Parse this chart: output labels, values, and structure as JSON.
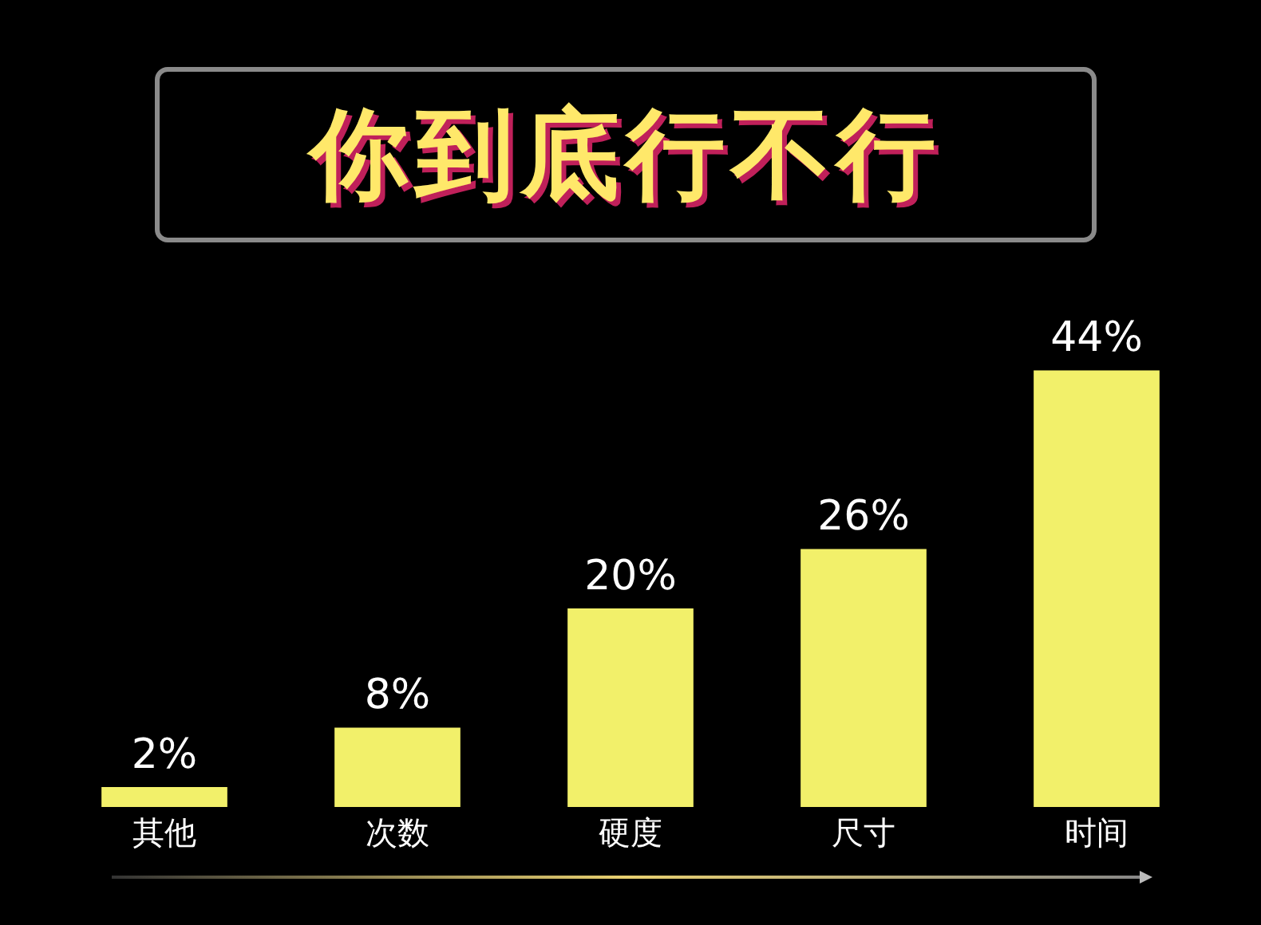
{
  "chart_data": {
    "type": "bar",
    "title": "你到底行不行",
    "categories": [
      "其他",
      "次数",
      "硬度",
      "尺寸",
      "时间"
    ],
    "values": [
      2,
      8,
      20,
      26,
      44
    ],
    "value_labels": [
      "2%",
      "8%",
      "20%",
      "26%",
      "44%"
    ],
    "color": "#f2f06a"
  }
}
